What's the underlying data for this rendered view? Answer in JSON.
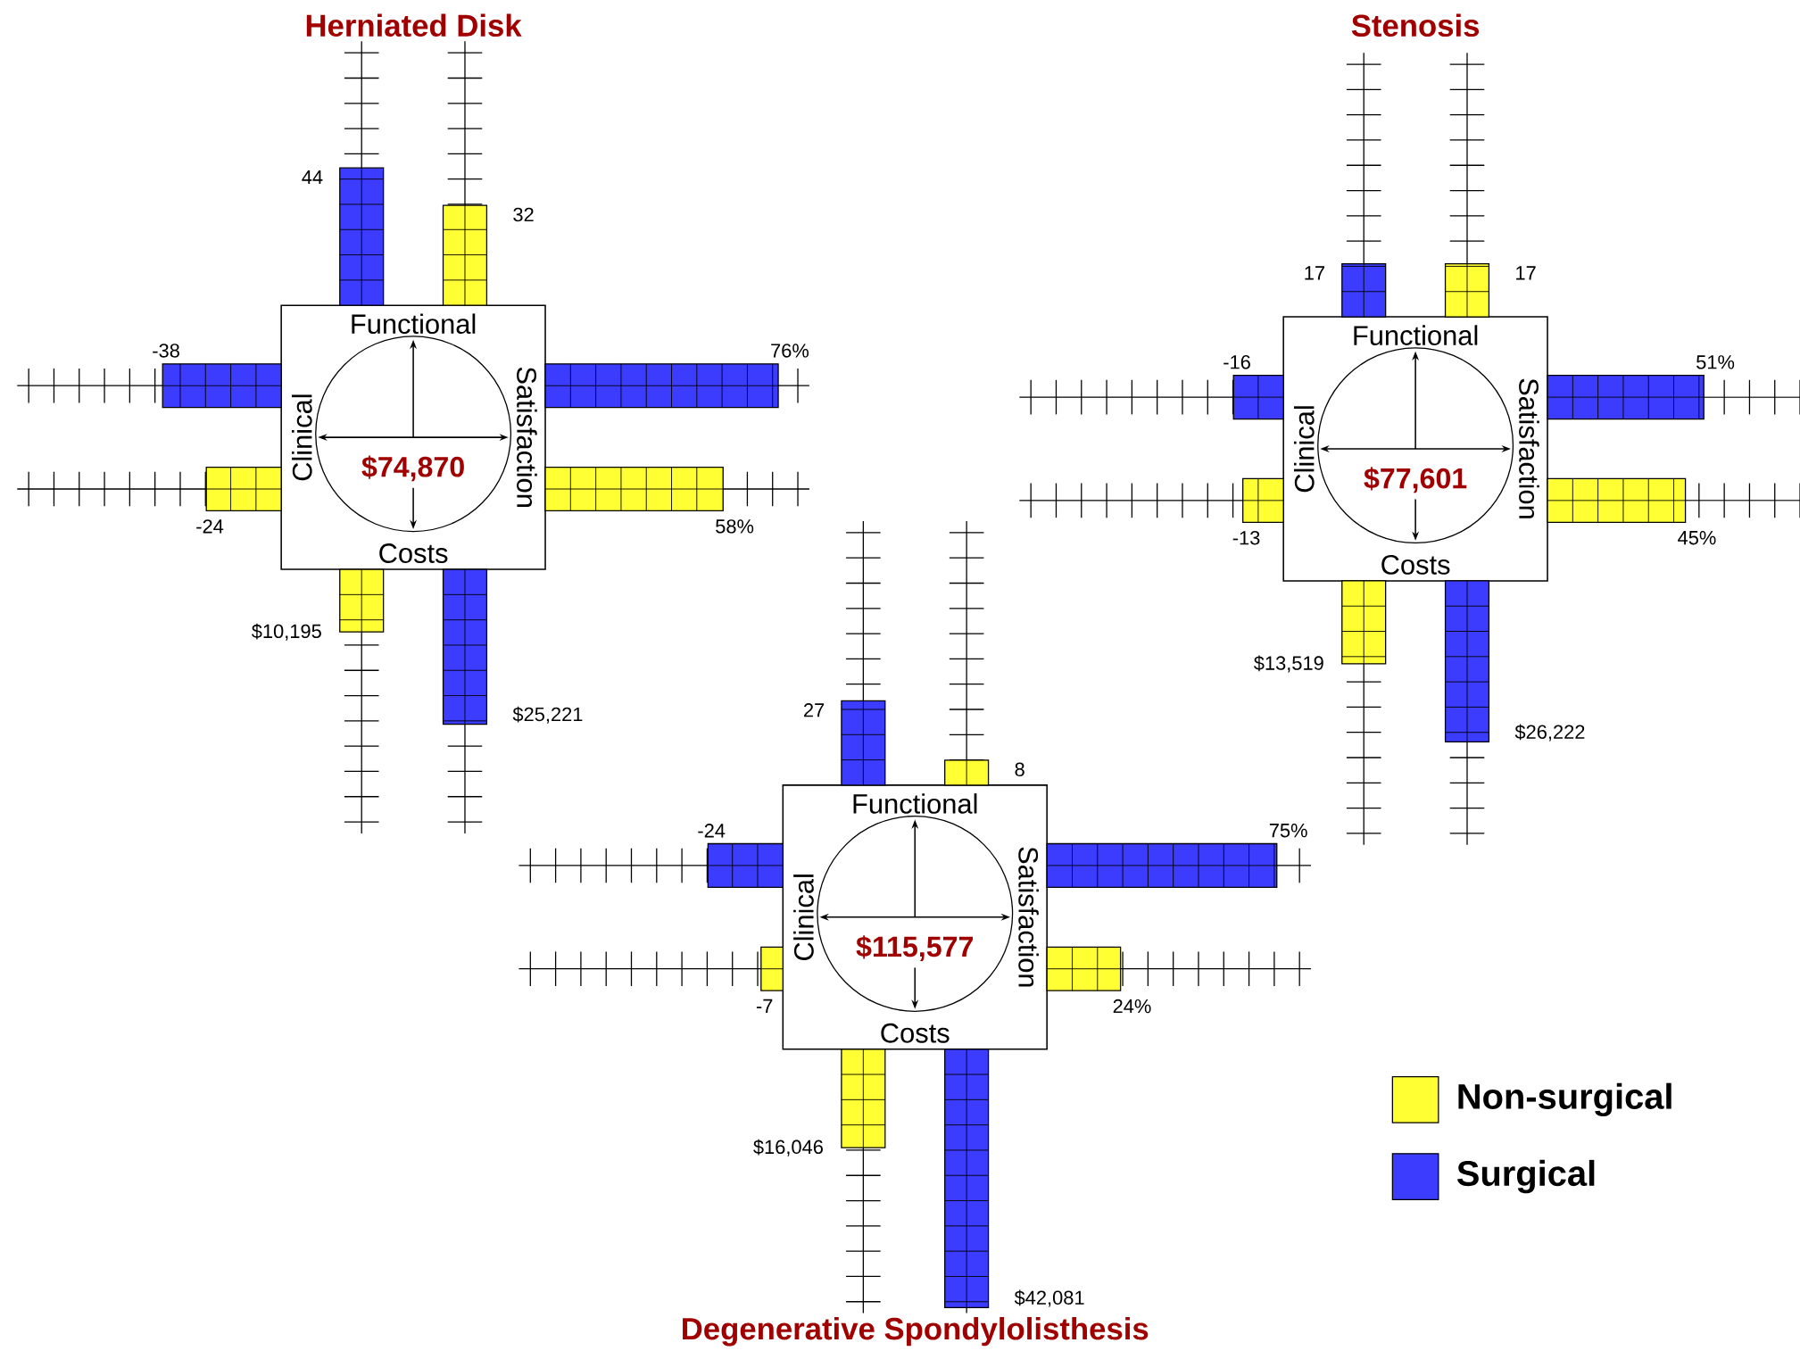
{
  "chart_data": [
    {
      "type": "other",
      "title": "Herniated Disk",
      "categories": [
        "Functional",
        "Satisfaction",
        "Costs",
        "Clinical"
      ],
      "series": [
        {
          "color": "#ffff33",
          "values": [
            32,
            58,
            10195,
            -24
          ],
          "value_labels": [
            "32",
            "58%",
            "$10,195",
            "-24"
          ]
        },
        {
          "color": "#3c3cff",
          "values": [
            44,
            76,
            25221,
            -38
          ],
          "value_labels": [
            "44",
            "76%",
            "$25,221",
            "-38"
          ]
        }
      ],
      "annotations": [
        "$74,870"
      ]
    },
    {
      "type": "other",
      "title": "Stenosis",
      "categories": [
        "Functional",
        "Satisfaction",
        "Costs",
        "Clinical"
      ],
      "series": [
        {
          "color": "#ffff33",
          "values": [
            17,
            45,
            13519,
            -13
          ],
          "value_labels": [
            "17",
            "45%",
            "$13,519",
            "-13"
          ]
        },
        {
          "color": "#3c3cff",
          "values": [
            17,
            51,
            26222,
            -16
          ],
          "value_labels": [
            "17",
            "51%",
            "$26,222",
            "-16"
          ]
        }
      ],
      "annotations": [
        "$77,601"
      ]
    },
    {
      "type": "other",
      "title": "Degenerative Spondylolisthesis",
      "categories": [
        "Functional",
        "Satisfaction",
        "Costs",
        "Clinical"
      ],
      "series": [
        {
          "name": "Non-surgical",
          "color": "#ffff33",
          "values": [
            8,
            24,
            16046,
            -7
          ],
          "value_labels": [
            "8",
            "24%",
            "$16,046",
            "-7"
          ]
        },
        {
          "name": "Surgical",
          "color": "#3c3cff",
          "values": [
            27,
            75,
            42081,
            -24
          ],
          "value_labels": [
            "27",
            "75%",
            "$42,081",
            "-24"
          ]
        }
      ],
      "annotations": [
        "$115,577"
      ],
      "legend": "right"
    }
  ]
}
